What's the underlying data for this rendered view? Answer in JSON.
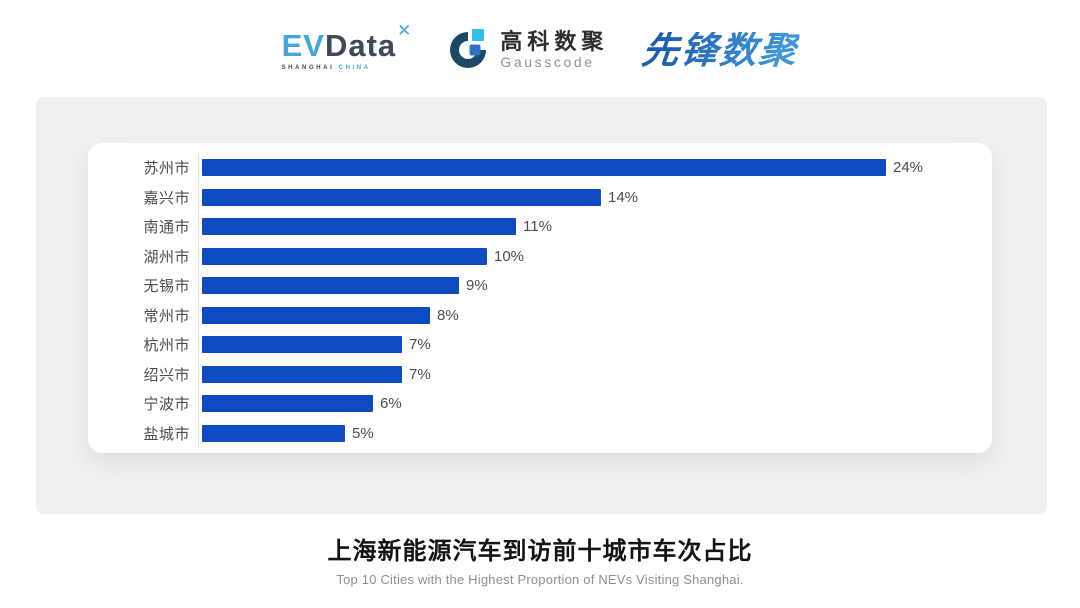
{
  "header": {
    "logos": {
      "evdata": {
        "ev": "EV",
        "data": "Data",
        "mark": "✕",
        "sub_shanghai": "SHANGHAI",
        "sub_china": "CHINA",
        "color_light": "#45a6d9",
        "color_dark": "#3e4a5a"
      },
      "gausscode": {
        "cn": "高科数聚",
        "en": "Gausscode",
        "icon_dark": "#1a4a63",
        "icon_cyan": "#2ec0e8",
        "icon_blue": "#3272c4"
      },
      "pioneer": {
        "text": "先锋数聚",
        "color_from": "#1b5cae",
        "color_to": "#3f97d9"
      }
    }
  },
  "chart_data": {
    "type": "bar",
    "orientation": "horizontal",
    "title": "上海新能源汽车到访前十城市车次占比",
    "subtitle": "Top 10 Cities with the Highest Proportion of  NEVs Visiting Shanghai.",
    "categories": [
      "苏州市",
      "嘉兴市",
      "南通市",
      "湖州市",
      "无锡市",
      "常州市",
      "杭州市",
      "绍兴市",
      "宁波市",
      "盐城市"
    ],
    "values": [
      24,
      14,
      11,
      10,
      9,
      8,
      7,
      7,
      6,
      5
    ],
    "value_labels": [
      "24%",
      "14%",
      "11%",
      "10%",
      "9%",
      "8%",
      "7%",
      "7%",
      "6%",
      "5%"
    ],
    "xlim": [
      0,
      24
    ],
    "grid": false,
    "legend": false,
    "bar_color": "#0e4bc1",
    "axis_color": "#dcdcdc",
    "label_color": "#4d4d4d"
  },
  "caption": {
    "title": "上海新能源汽车到访前十城市车次占比",
    "subtitle": "Top 10 Cities with the Highest Proportion of  NEVs Visiting Shanghai."
  }
}
